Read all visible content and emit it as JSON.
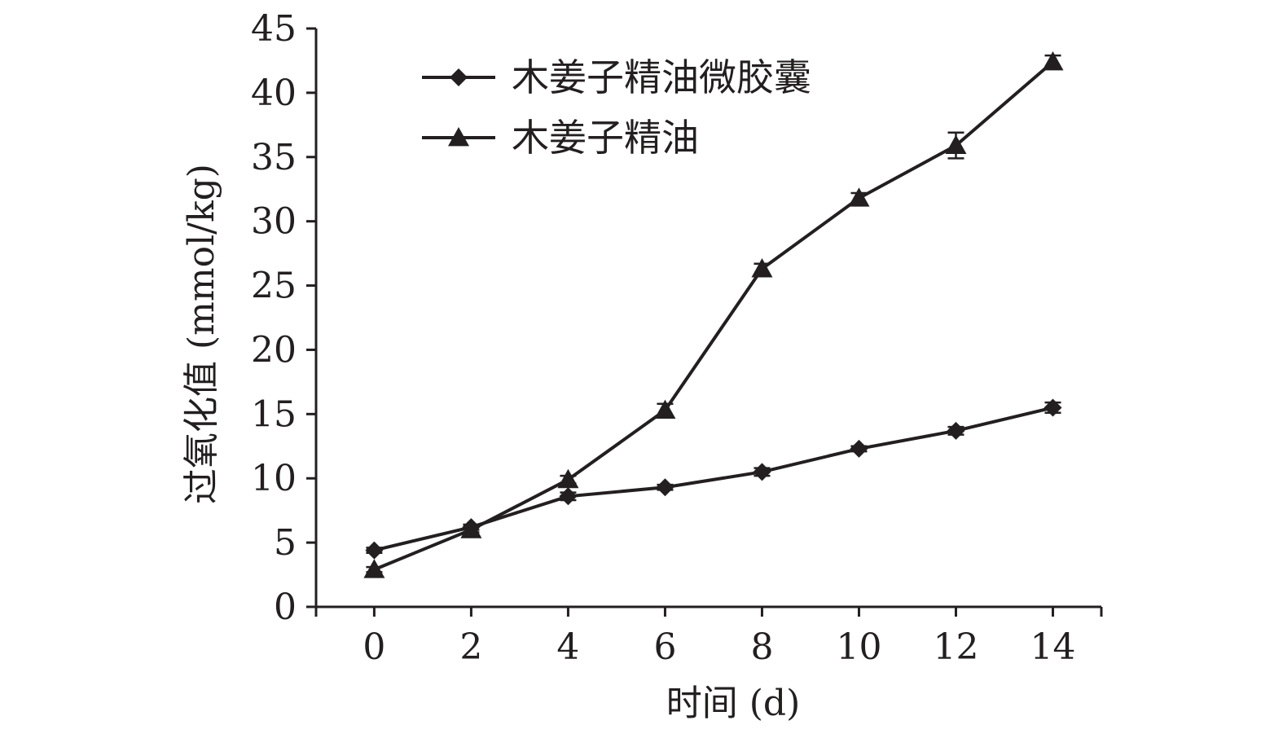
{
  "chart_data": {
    "type": "line",
    "title": "",
    "xlabel": "时间 (d)",
    "ylabel": "过氧化值 (mmol/kg)",
    "x": [
      0,
      2,
      4,
      6,
      8,
      10,
      12,
      14
    ],
    "xlim": [
      -1.2,
      15
    ],
    "ylim": [
      0,
      45
    ],
    "xticks": [
      0,
      2,
      4,
      6,
      8,
      10,
      12,
      14
    ],
    "yticks": [
      0,
      5,
      10,
      15,
      20,
      25,
      30,
      35,
      40,
      45
    ],
    "grid": false,
    "legend_position": "top-center",
    "series": [
      {
        "name": "木姜子精油微胶囊",
        "marker": "diamond",
        "values": [
          4.4,
          6.2,
          8.6,
          9.3,
          10.5,
          12.3,
          13.7,
          15.5
        ],
        "errors": [
          0.2,
          0.2,
          0.3,
          0.2,
          0.3,
          0.2,
          0.3,
          0.4
        ]
      },
      {
        "name": "木姜子精油",
        "marker": "triangle",
        "values": [
          2.9,
          6.0,
          9.9,
          15.3,
          26.3,
          31.8,
          35.9,
          42.4
        ],
        "errors": [
          0.2,
          0.2,
          0.3,
          0.5,
          0.4,
          0.4,
          1.0,
          0.5
        ]
      }
    ],
    "colors": {
      "line": "#231f20",
      "background": "#ffffff"
    }
  }
}
